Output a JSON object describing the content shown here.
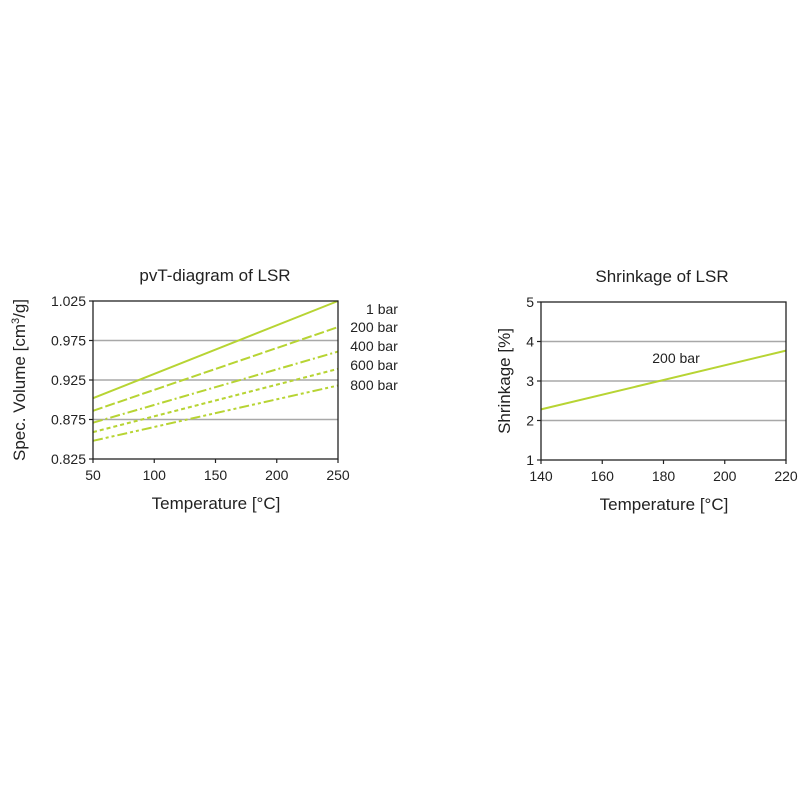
{
  "chart_data": [
    {
      "type": "line",
      "title": "pvT-diagram of LSR",
      "xlabel": "Temperature [°C]",
      "ylabel_prefix": "Spec. Volume [cm",
      "ylabel_sup": "3",
      "ylabel_suffix": "/g]",
      "xlim": [
        50,
        250
      ],
      "ylim": [
        0.825,
        1.025
      ],
      "xticks": [
        "50",
        "100",
        "150",
        "200",
        "250"
      ],
      "yticks": [
        "0.825",
        "0.875",
        "0.925",
        "0.975",
        "1.025"
      ],
      "grid_y": [
        0.875,
        0.925,
        0.975
      ],
      "line_color": "#b7d433",
      "series": [
        {
          "name": "1 bar",
          "x": [
            50,
            250
          ],
          "values": [
            0.902,
            1.025
          ]
        },
        {
          "name": "200 bar",
          "x": [
            50,
            250
          ],
          "values": [
            0.886,
            0.992
          ]
        },
        {
          "name": "400 bar",
          "x": [
            50,
            250
          ],
          "values": [
            0.871,
            0.961
          ]
        },
        {
          "name": "600 bar",
          "x": [
            50,
            250
          ],
          "values": [
            0.859,
            0.939
          ]
        },
        {
          "name": "800 bar",
          "x": [
            50,
            250
          ],
          "values": [
            0.848,
            0.918
          ]
        }
      ]
    },
    {
      "type": "line",
      "title": "Shrinkage of LSR",
      "xlabel": "Temperature [°C]",
      "ylabel": "Shrinkage [%]",
      "xlim": [
        140,
        220
      ],
      "ylim": [
        1,
        5
      ],
      "xticks": [
        "140",
        "160",
        "180",
        "200",
        "220"
      ],
      "yticks": [
        "1",
        "2",
        "3",
        "4",
        "5"
      ],
      "grid_y": [
        2,
        3,
        4
      ],
      "line_color": "#b7d433",
      "series": [
        {
          "name": "200 bar",
          "x": [
            140,
            220
          ],
          "values": [
            2.28,
            3.77
          ]
        }
      ]
    }
  ]
}
